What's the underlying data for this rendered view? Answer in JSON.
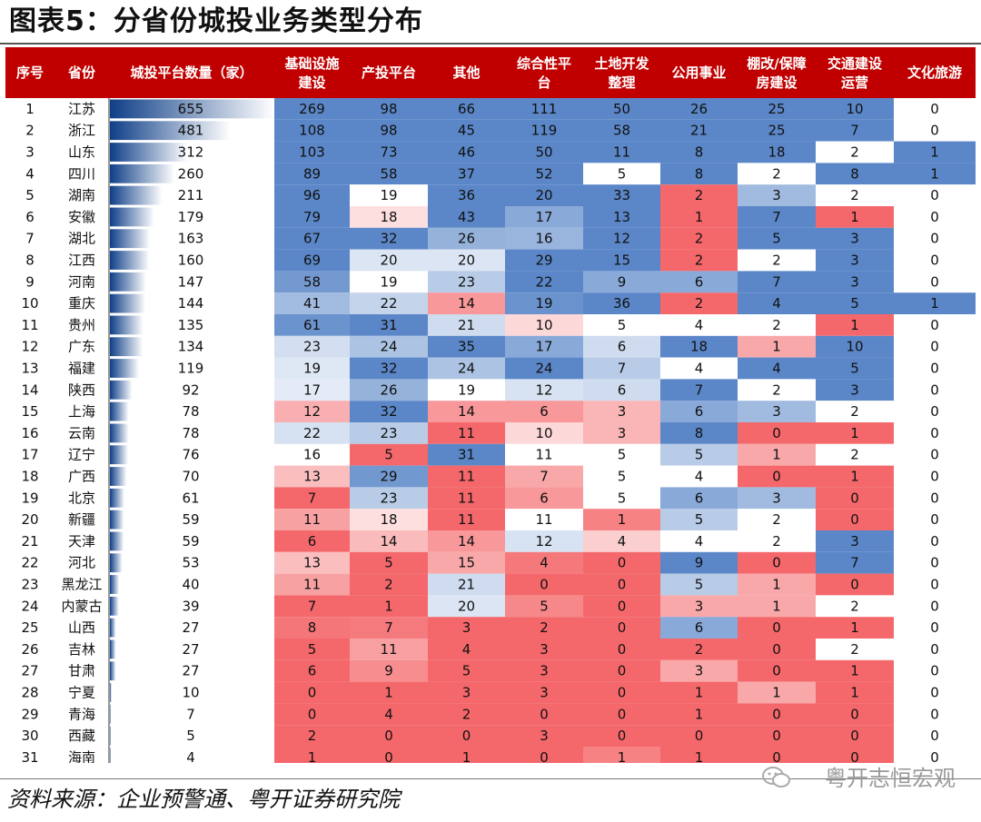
{
  "title": "图表5：分省份城投业务类型分布",
  "source": "资料来源：企业预警通、粤开证券研究院",
  "watermark": "粤开志恒宏观",
  "colors": {
    "header_bg": "#c00000",
    "header_text": "#ffffff",
    "blue_max": "#5b87c8",
    "red_max": "#f4686b",
    "bar_dark": "#0f3f88"
  },
  "chart_data": {
    "type": "table",
    "columns": [
      "序号",
      "省份",
      "城投平台数量（家）",
      "基础设施建设",
      "产投平台",
      "其他",
      "综合性平台",
      "土地开发整理",
      "公用事业",
      "棚改/保障房建设",
      "交通建设运营",
      "文化旅游"
    ],
    "header_lines": [
      [
        "序号"
      ],
      [
        "省份"
      ],
      [
        "城投平台数量（家）"
      ],
      [
        "基础设施",
        "建设"
      ],
      [
        "产投平台"
      ],
      [
        "其他"
      ],
      [
        "综合性平",
        "台"
      ],
      [
        "土地开发",
        "整理"
      ],
      [
        "公用事业"
      ],
      [
        "棚改/保障",
        "房建设"
      ],
      [
        "交通建设",
        "运营"
      ],
      [
        "文化旅游"
      ]
    ],
    "rows": [
      [
        1,
        "江苏",
        655,
        269,
        98,
        66,
        111,
        50,
        26,
        25,
        10,
        0
      ],
      [
        2,
        "浙江",
        481,
        108,
        98,
        45,
        119,
        58,
        21,
        25,
        7,
        0
      ],
      [
        3,
        "山东",
        312,
        103,
        73,
        46,
        50,
        11,
        8,
        18,
        2,
        1
      ],
      [
        4,
        "四川",
        260,
        89,
        58,
        37,
        52,
        5,
        8,
        2,
        8,
        1
      ],
      [
        5,
        "湖南",
        211,
        96,
        19,
        36,
        20,
        33,
        2,
        3,
        2,
        0
      ],
      [
        6,
        "安徽",
        179,
        79,
        18,
        43,
        17,
        13,
        1,
        7,
        1,
        0
      ],
      [
        7,
        "湖北",
        163,
        67,
        32,
        26,
        16,
        12,
        2,
        5,
        3,
        0
      ],
      [
        8,
        "江西",
        160,
        69,
        20,
        20,
        29,
        15,
        2,
        2,
        3,
        0
      ],
      [
        9,
        "河南",
        147,
        58,
        19,
        23,
        22,
        9,
        6,
        7,
        3,
        0
      ],
      [
        10,
        "重庆",
        144,
        41,
        22,
        14,
        19,
        36,
        2,
        4,
        5,
        1
      ],
      [
        11,
        "贵州",
        135,
        61,
        31,
        21,
        10,
        5,
        4,
        2,
        1,
        0
      ],
      [
        12,
        "广东",
        134,
        23,
        24,
        35,
        17,
        6,
        18,
        1,
        10,
        0
      ],
      [
        13,
        "福建",
        119,
        19,
        32,
        24,
        24,
        7,
        4,
        4,
        5,
        0
      ],
      [
        14,
        "陕西",
        92,
        17,
        26,
        19,
        12,
        6,
        7,
        2,
        3,
        0
      ],
      [
        15,
        "上海",
        78,
        12,
        32,
        14,
        6,
        3,
        6,
        3,
        2,
        0
      ],
      [
        16,
        "云南",
        78,
        22,
        23,
        11,
        10,
        3,
        8,
        0,
        1,
        0
      ],
      [
        17,
        "辽宁",
        76,
        16,
        5,
        31,
        11,
        5,
        5,
        1,
        2,
        0
      ],
      [
        18,
        "广西",
        70,
        13,
        29,
        11,
        7,
        5,
        4,
        0,
        1,
        0
      ],
      [
        19,
        "北京",
        61,
        7,
        23,
        11,
        6,
        5,
        6,
        3,
        0,
        0
      ],
      [
        20,
        "新疆",
        59,
        11,
        18,
        11,
        11,
        1,
        5,
        2,
        0,
        0
      ],
      [
        21,
        "天津",
        59,
        6,
        14,
        14,
        12,
        4,
        4,
        2,
        3,
        0
      ],
      [
        22,
        "河北",
        53,
        13,
        5,
        15,
        4,
        0,
        9,
        0,
        7,
        0
      ],
      [
        23,
        "黑龙江",
        40,
        11,
        2,
        21,
        0,
        0,
        5,
        1,
        0,
        0
      ],
      [
        24,
        "内蒙古",
        39,
        7,
        1,
        20,
        5,
        0,
        3,
        1,
        2,
        0
      ],
      [
        25,
        "山西",
        27,
        8,
        7,
        3,
        2,
        0,
        6,
        0,
        1,
        0
      ],
      [
        26,
        "吉林",
        27,
        5,
        11,
        4,
        3,
        0,
        2,
        0,
        2,
        0
      ],
      [
        27,
        "甘肃",
        27,
        6,
        9,
        5,
        3,
        0,
        3,
        0,
        1,
        0
      ],
      [
        28,
        "宁夏",
        10,
        0,
        1,
        3,
        3,
        0,
        1,
        1,
        1,
        0
      ],
      [
        29,
        "青海",
        7,
        0,
        4,
        2,
        0,
        0,
        1,
        0,
        0,
        0
      ],
      [
        30,
        "西藏",
        5,
        2,
        0,
        0,
        3,
        0,
        0,
        0,
        0,
        0
      ],
      [
        31,
        "海南",
        4,
        1,
        0,
        1,
        0,
        1,
        1,
        0,
        0,
        0
      ]
    ]
  }
}
